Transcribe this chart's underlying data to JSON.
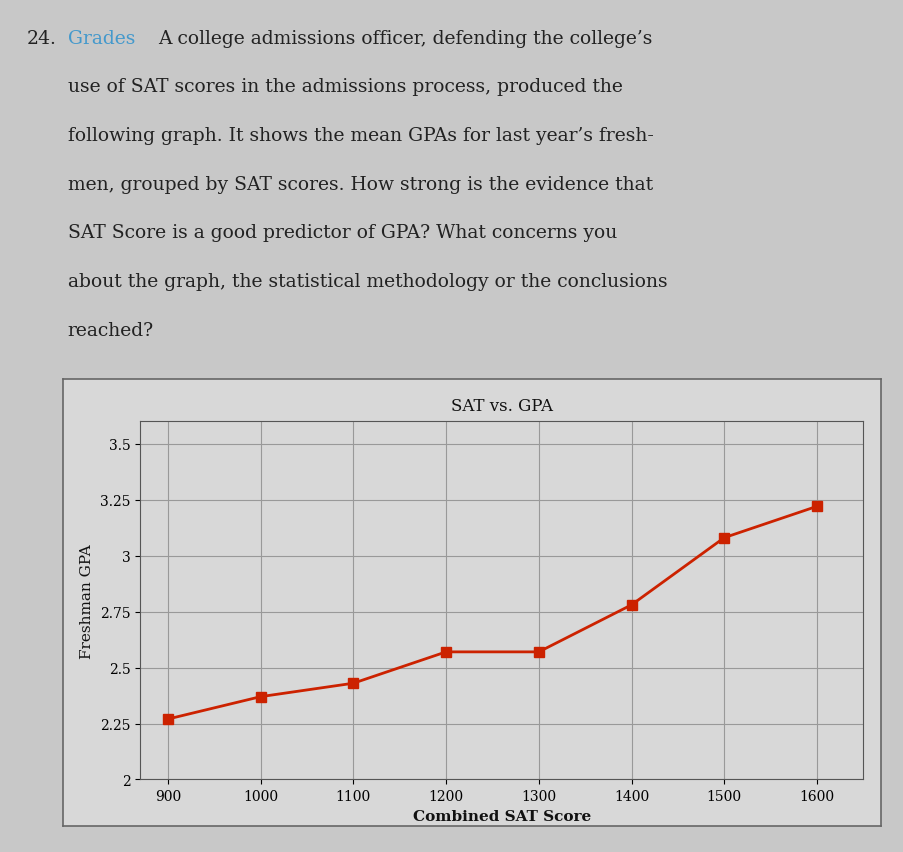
{
  "title": "SAT vs. GPA",
  "xlabel": "Combined SAT Score",
  "ylabel": "Freshman GPA",
  "sat_scores": [
    900,
    1000,
    1100,
    1200,
    1300,
    1400,
    1500,
    1600
  ],
  "gpa_values": [
    2.27,
    2.37,
    2.43,
    2.57,
    2.57,
    2.78,
    3.08,
    3.22
  ],
  "xlim": [
    870,
    1650
  ],
  "ylim": [
    2.0,
    3.6
  ],
  "yticks": [
    2.0,
    2.25,
    2.5,
    2.75,
    3.0,
    3.25,
    3.5
  ],
  "xticks": [
    900,
    1000,
    1100,
    1200,
    1300,
    1400,
    1500,
    1600
  ],
  "line_color": "#cc2200",
  "marker_color": "#cc2200",
  "marker": "s",
  "marker_size": 7,
  "line_width": 2.0,
  "grid_color": "#aaaaaa",
  "bg_color": "#e0e0e0",
  "page_bg": "#c8c8c8",
  "title_fontsize": 12,
  "label_fontsize": 11,
  "tick_fontsize": 10,
  "grades_color": "#4499cc",
  "text_fontsize": 13.5
}
